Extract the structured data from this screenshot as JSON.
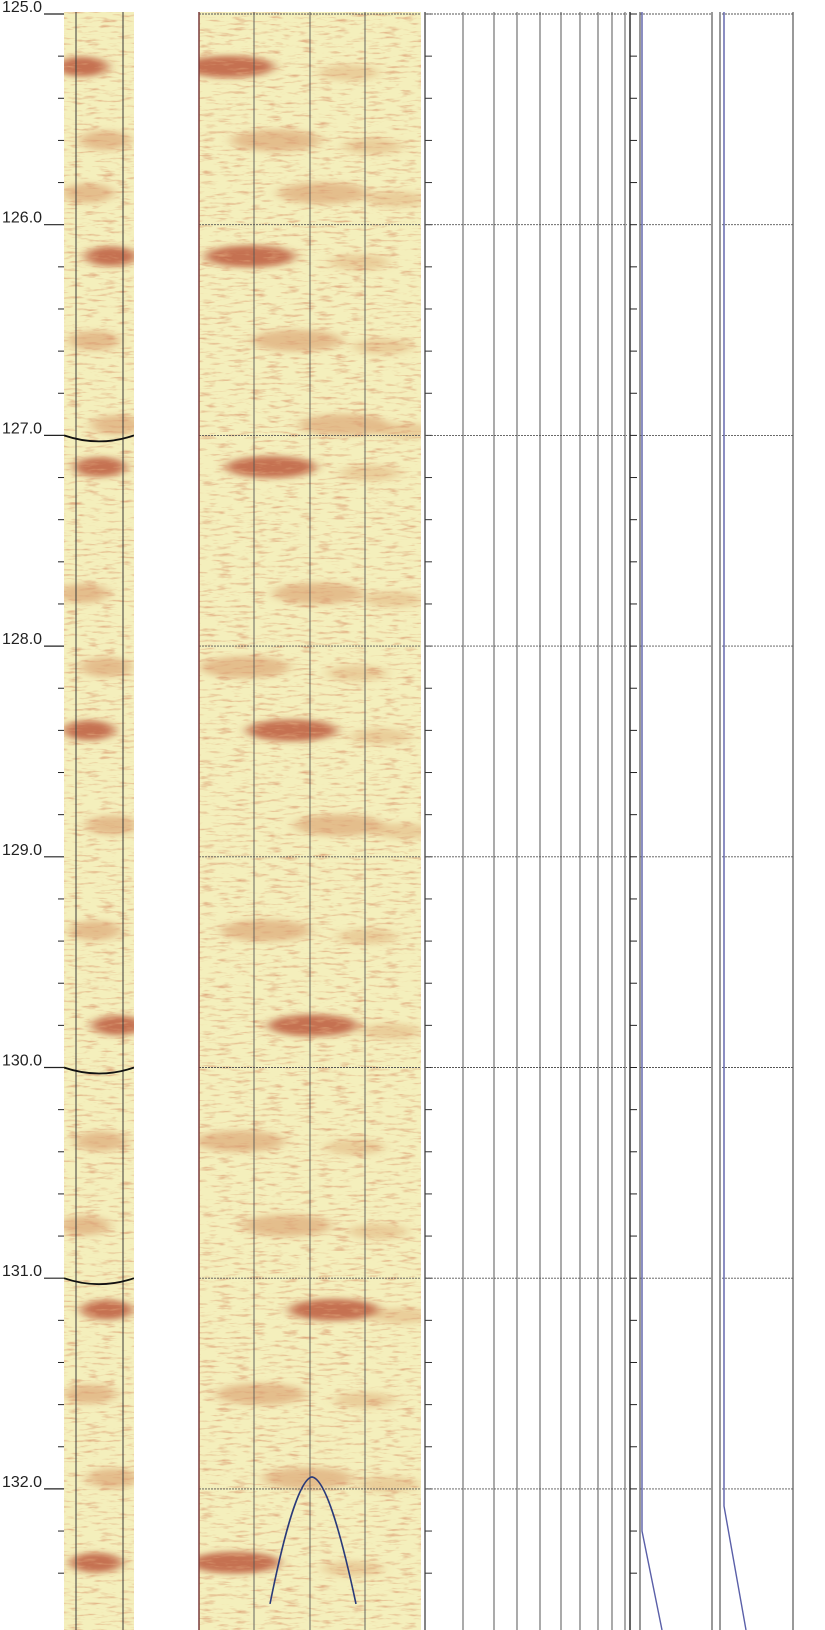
{
  "chart_data": {
    "type": "borehole_image_log",
    "depth_axis": {
      "start": 125.0,
      "end": 132.45,
      "major_step": 1.0,
      "minor_step": 0.2,
      "labels": [
        "125.0",
        "126.0",
        "127.0",
        "128.0",
        "129.0",
        "130.0",
        "131.0",
        "132.0"
      ]
    },
    "tracks": [
      {
        "name": "",
        "kind": "image",
        "palette": [
          "#f6f2c0",
          "#ecdf9c",
          "#d68e5c",
          "#b5482c"
        ]
      },
      {
        "name": "",
        "kind": "image",
        "palette": [
          "#f6f2c0",
          "#ecdf9c",
          "#d68e5c",
          "#b5482c"
        ]
      },
      {
        "name": "",
        "kind": "empty-grid"
      },
      {
        "name": "",
        "kind": "curve",
        "curve_color": "#5a5fa8"
      },
      {
        "name": "",
        "kind": "curve",
        "curve_color": "#5a5fa8"
      }
    ],
    "traced_sinusoids": [
      {
        "track": "left-image",
        "depth": 127.0
      },
      {
        "track": "left-image",
        "depth": 130.0
      },
      {
        "track": "left-image",
        "depth": 131.0
      },
      {
        "track": "main-image",
        "depth": 132.0
      }
    ],
    "dark_bands": [
      125.25,
      125.6,
      125.85,
      126.15,
      126.55,
      126.95,
      127.15,
      127.75,
      128.1,
      128.4,
      128.85,
      129.35,
      129.8,
      130.35,
      130.75,
      131.15,
      131.55,
      131.95,
      132.35
    ]
  }
}
